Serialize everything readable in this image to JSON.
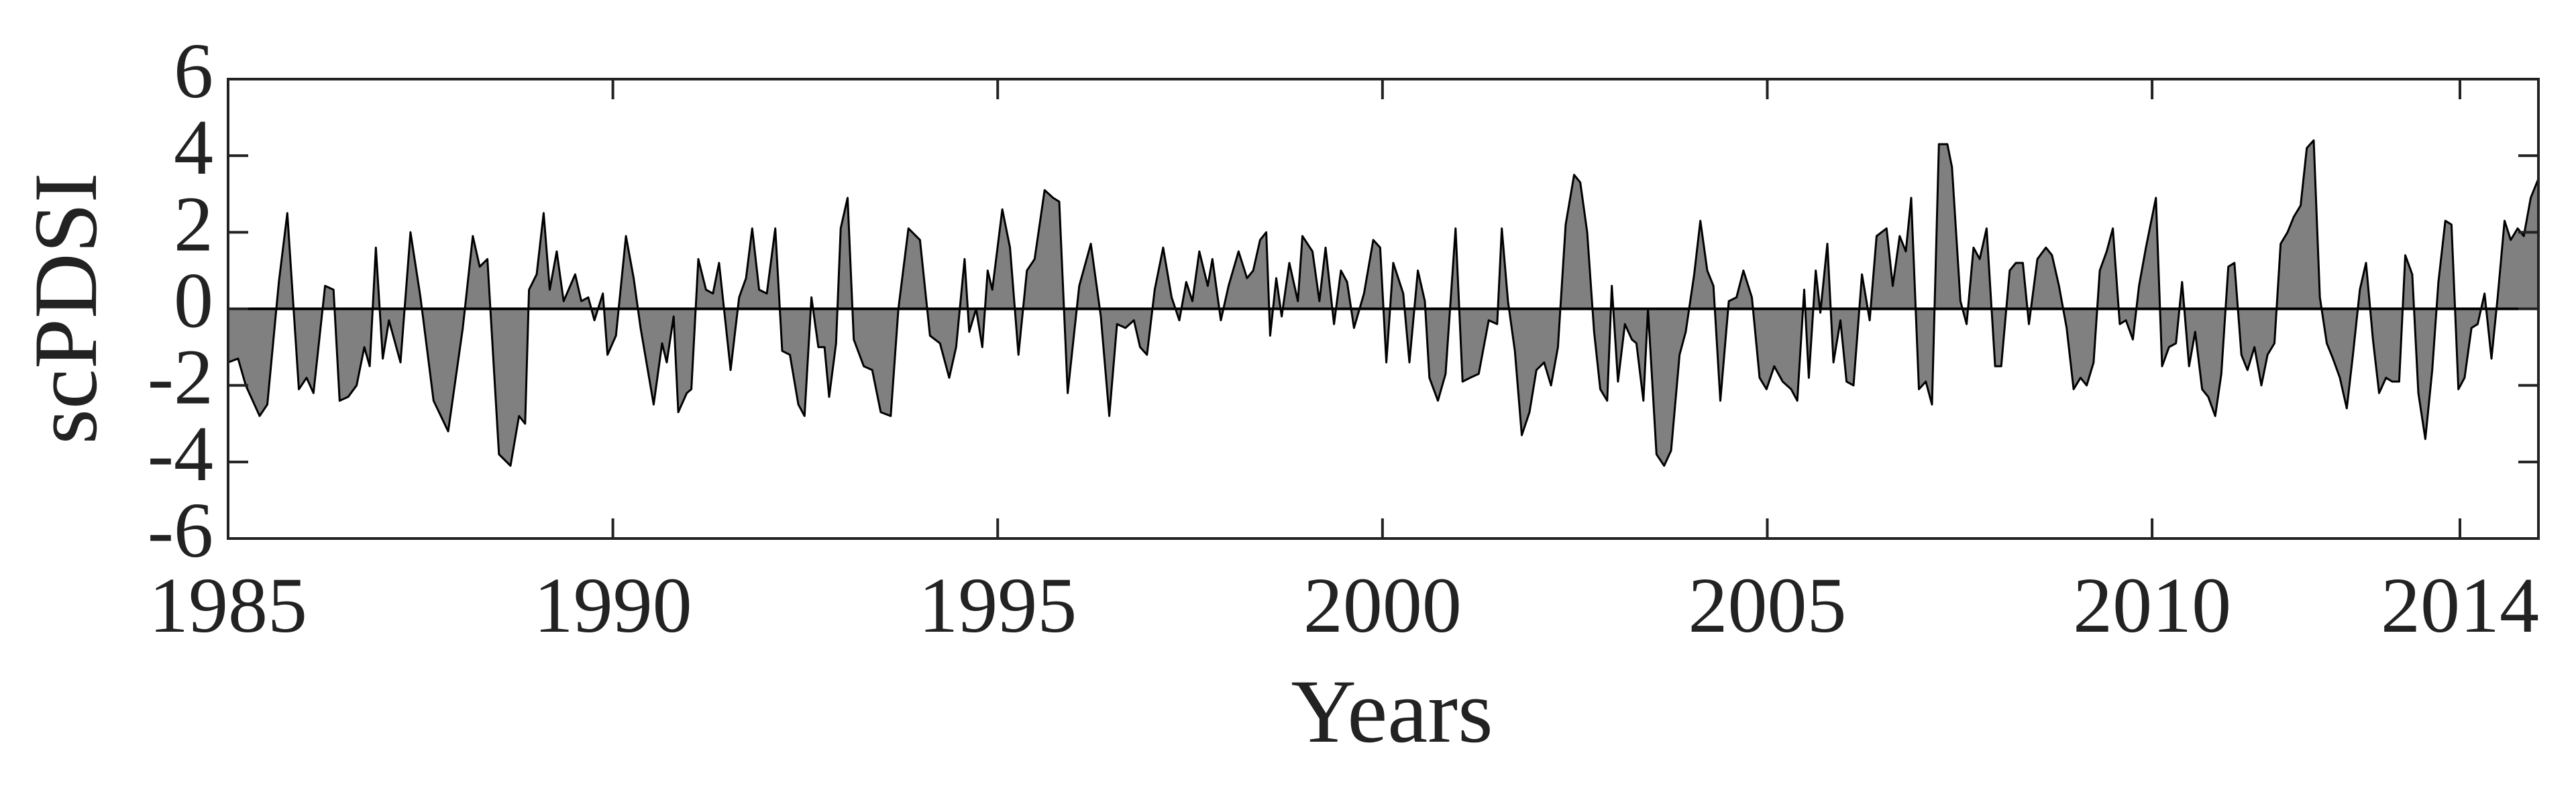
{
  "chart_data": {
    "type": "area",
    "ylabel": "scPDSI",
    "xlabel": "Years",
    "xlim": [
      1985,
      2015.02
    ],
    "xticks": [
      1985,
      1990,
      1995,
      2000,
      2005,
      2010,
      2014
    ],
    "ylim": [
      -6,
      6
    ],
    "yticks": [
      -6,
      -4,
      -2,
      0,
      2,
      4,
      6
    ],
    "color": "#808080",
    "line_color": "#000000",
    "grid": false,
    "series": [
      {
        "name": "scPDSI",
        "x": [
          1985.0,
          1985.13,
          1985.23,
          1985.41,
          1985.51,
          1985.66,
          1985.77,
          1985.92,
          1986.02,
          1986.11,
          1986.26,
          1986.37,
          1986.45,
          1986.56,
          1986.67,
          1986.77,
          1986.84,
          1986.92,
          1987.01,
          1987.09,
          1987.24,
          1987.37,
          1987.5,
          1987.67,
          1987.86,
          1988.05,
          1988.18,
          1988.27,
          1988.37,
          1988.52,
          1988.67,
          1988.78,
          1988.86,
          1988.91,
          1989.01,
          1989.1,
          1989.18,
          1989.27,
          1989.36,
          1989.51,
          1989.59,
          1989.68,
          1989.76,
          1989.87,
          1989.93,
          1990.04,
          1990.17,
          1990.27,
          1990.36,
          1990.53,
          1990.64,
          1990.7,
          1990.79,
          1990.85,
          1990.96,
          1991.02,
          1991.11,
          1991.21,
          1991.3,
          1991.38,
          1991.53,
          1991.64,
          1991.73,
          1991.81,
          1991.9,
          1992.0,
          1992.11,
          1992.2,
          1992.3,
          1992.41,
          1992.49,
          1992.58,
          1992.67,
          1992.75,
          1992.81,
          1992.9,
          1992.96,
          1993.05,
          1993.13,
          1993.26,
          1993.37,
          1993.48,
          1993.61,
          1993.71,
          1993.84,
          1993.99,
          1994.12,
          1994.25,
          1994.37,
          1994.46,
          1994.57,
          1994.63,
          1994.72,
          1994.8,
          1994.87,
          1994.93,
          1995.06,
          1995.16,
          1995.27,
          1995.38,
          1995.48,
          1995.61,
          1995.72,
          1995.8,
          1995.91,
          1996.06,
          1996.21,
          1996.34,
          1996.45,
          1996.55,
          1996.66,
          1996.77,
          1996.85,
          1996.94,
          1997.04,
          1997.15,
          1997.26,
          1997.36,
          1997.45,
          1997.53,
          1997.62,
          1997.73,
          1997.79,
          1997.9,
          1998.0,
          1998.13,
          1998.24,
          1998.32,
          1998.41,
          1998.49,
          1998.54,
          1998.62,
          1998.69,
          1998.79,
          1998.9,
          1998.96,
          1999.09,
          1999.18,
          1999.26,
          1999.37,
          1999.46,
          1999.54,
          1999.63,
          1999.76,
          1999.88,
          1999.97,
          2000.05,
          2000.14,
          2000.27,
          2000.35,
          2000.46,
          2000.55,
          2000.61,
          2000.72,
          2000.82,
          2000.95,
          2001.04,
          2001.14,
          2001.25,
          2001.38,
          2001.49,
          2001.55,
          2001.63,
          2001.72,
          2001.81,
          2001.91,
          2002.0,
          2002.1,
          2002.19,
          2002.28,
          2002.38,
          2002.49,
          2002.57,
          2002.66,
          2002.75,
          2002.83,
          2002.92,
          2002.98,
          2003.06,
          2003.15,
          2003.24,
          2003.3,
          2003.39,
          2003.45,
          2003.56,
          2003.66,
          2003.75,
          2003.86,
          2003.94,
          2004.05,
          2004.13,
          2004.22,
          2004.3,
          2004.39,
          2004.5,
          2004.6,
          2004.69,
          2004.8,
          2004.9,
          2004.99,
          2005.09,
          2005.2,
          2005.31,
          2005.39,
          2005.48,
          2005.54,
          2005.63,
          2005.69,
          2005.78,
          2005.86,
          2005.95,
          2006.03,
          2006.12,
          2006.23,
          2006.33,
          2006.42,
          2006.55,
          2006.63,
          2006.72,
          2006.8,
          2006.87,
          2006.97,
          2007.06,
          2007.14,
          2007.23,
          2007.34,
          2007.4,
          2007.51,
          2007.59,
          2007.68,
          2007.76,
          2007.85,
          2007.96,
          2008.04,
          2008.15,
          2008.23,
          2008.32,
          2008.4,
          2008.51,
          2008.62,
          2008.7,
          2008.79,
          2008.89,
          2008.98,
          2009.07,
          2009.15,
          2009.24,
          2009.32,
          2009.41,
          2009.49,
          2009.58,
          2009.66,
          2009.75,
          2009.83,
          2009.92,
          2010.05,
          2010.13,
          2010.22,
          2010.31,
          2010.39,
          2010.48,
          2010.56,
          2010.65,
          2010.73,
          2010.82,
          2010.9,
          2010.99,
          2011.07,
          2011.16,
          2011.24,
          2011.33,
          2011.42,
          2011.5,
          2011.59,
          2011.67,
          2011.76,
          2011.84,
          2011.93,
          2012.01,
          2012.1,
          2012.18,
          2012.27,
          2012.35,
          2012.44,
          2012.53,
          2012.61,
          2012.7,
          2012.78,
          2012.87,
          2012.95,
          2013.04,
          2013.12,
          2013.21,
          2013.29,
          2013.38,
          2013.46,
          2013.55,
          2013.64,
          2013.72,
          2013.81,
          2013.89,
          2013.98,
          2014.06,
          2014.15,
          2014.23,
          2014.32,
          2014.41,
          2014.49,
          2014.58,
          2014.66,
          2014.75,
          2014.83,
          2014.92,
          2015.02
        ],
        "values": [
          -1.4,
          -1.3,
          -2.0,
          -2.8,
          -2.5,
          0.7,
          2.5,
          -2.1,
          -1.8,
          -2.2,
          0.6,
          0.5,
          -2.4,
          -2.3,
          -2.0,
          -1.0,
          -1.5,
          1.6,
          -1.3,
          -0.3,
          -1.4,
          2.0,
          0.3,
          -2.4,
          -3.2,
          -0.5,
          1.9,
          1.1,
          1.3,
          -3.8,
          -4.1,
          -2.8,
          -3.0,
          0.5,
          0.9,
          2.5,
          0.5,
          1.5,
          0.2,
          0.9,
          0.2,
          0.3,
          -0.3,
          0.4,
          -1.2,
          -0.7,
          1.9,
          0.8,
          -0.5,
          -2.5,
          -0.9,
          -1.4,
          -0.2,
          -2.7,
          -2.2,
          -2.1,
          1.3,
          0.5,
          0.4,
          1.2,
          -1.6,
          0.3,
          0.8,
          2.1,
          0.5,
          0.4,
          2.1,
          -1.1,
          -1.2,
          -2.5,
          -2.8,
          0.3,
          -1.0,
          -1.0,
          -2.3,
          -0.9,
          2.1,
          2.9,
          -0.8,
          -1.5,
          -1.6,
          -2.7,
          -2.8,
          0.0,
          2.1,
          1.8,
          -0.7,
          -0.9,
          -1.8,
          -1.0,
          1.3,
          -0.6,
          0.0,
          -1.0,
          1.0,
          0.5,
          2.6,
          1.6,
          -1.2,
          1.0,
          1.3,
          3.1,
          2.9,
          2.8,
          -2.2,
          0.6,
          1.7,
          -0.2,
          -2.8,
          -0.4,
          -0.5,
          -0.3,
          -1.0,
          -1.2,
          0.5,
          1.6,
          0.3,
          -0.3,
          0.7,
          0.2,
          1.5,
          0.6,
          1.3,
          -0.3,
          0.6,
          1.5,
          0.8,
          1.0,
          1.8,
          2.0,
          -0.7,
          0.8,
          -0.2,
          1.2,
          0.2,
          1.9,
          1.5,
          0.2,
          1.6,
          -0.4,
          1.0,
          0.7,
          -0.5,
          0.4,
          1.8,
          1.6,
          -1.4,
          1.2,
          0.4,
          -1.4,
          1.0,
          0.2,
          -1.8,
          -2.4,
          -1.7,
          2.1,
          -1.9,
          -1.8,
          -1.7,
          -0.3,
          -0.4,
          2.1,
          0.2,
          -1.1,
          -3.3,
          -2.7,
          -1.6,
          -1.4,
          -2.0,
          -1.0,
          2.2,
          3.5,
          3.3,
          2.0,
          -0.6,
          -2.1,
          -2.4,
          0.6,
          -1.9,
          -0.4,
          -0.8,
          -0.9,
          -2.4,
          0.0,
          -3.8,
          -4.1,
          -3.7,
          -1.2,
          -0.6,
          0.9,
          2.3,
          1.0,
          0.6,
          -2.4,
          0.2,
          0.3,
          1.0,
          0.3,
          -1.8,
          -2.1,
          -1.5,
          -1.9,
          -2.1,
          -2.4,
          0.5,
          -1.8,
          1.0,
          -0.1,
          1.7,
          -1.4,
          -0.3,
          -1.9,
          -2.0,
          0.9,
          -0.3,
          1.9,
          2.1,
          0.6,
          1.9,
          1.5,
          2.9,
          -2.1,
          -1.9,
          -2.5,
          4.3,
          4.3,
          3.7,
          0.2,
          -0.4,
          1.6,
          1.3,
          2.1,
          -1.5,
          -1.5,
          1.0,
          1.2,
          1.2,
          -0.4,
          1.3,
          1.6,
          1.4,
          0.6,
          -0.5,
          -2.1,
          -1.8,
          -2.0,
          -1.4,
          1.0,
          1.5,
          2.1,
          -0.4,
          -0.3,
          -0.8,
          0.6,
          1.6,
          2.9,
          -1.5,
          -1.0,
          -0.9,
          0.7,
          -1.5,
          -0.6,
          -2.1,
          -2.3,
          -2.8,
          -1.7,
          1.1,
          1.2,
          -1.2,
          -1.6,
          -1.0,
          -2.0,
          -1.2,
          -0.9,
          1.7,
          2.0,
          2.4,
          2.7,
          4.2,
          4.4,
          0.3,
          -0.9,
          -1.3,
          -1.8,
          -2.6,
          -1.2,
          0.5,
          1.2,
          -0.8,
          -2.2,
          -1.8,
          -1.9,
          -1.9,
          1.4,
          0.9,
          -2.2,
          -3.4,
          -1.6,
          0.7,
          2.3,
          2.2,
          -2.1,
          -1.8,
          -0.5,
          -0.4,
          0.4,
          -1.3,
          0.3,
          2.3,
          1.8,
          2.1,
          1.9,
          2.9,
          3.4
        ]
      }
    ]
  }
}
